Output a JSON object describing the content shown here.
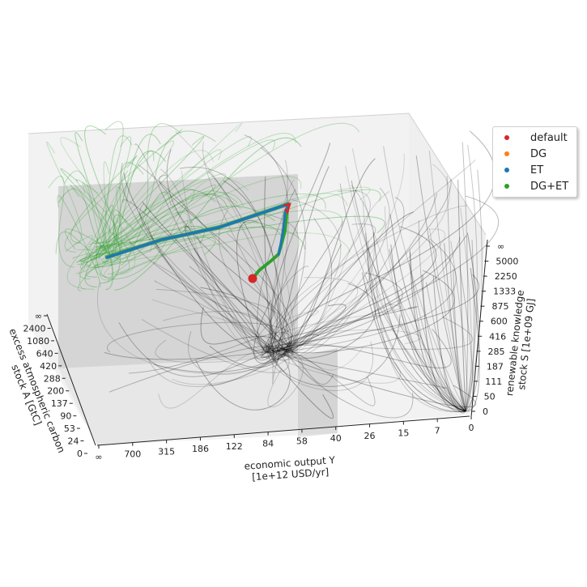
{
  "chart_data": {
    "type": "3d-phase-space",
    "title": "",
    "xlabel": "economic output Y\n[1e+12 USD/yr]",
    "ylabel": "excess atmospheric carbon\nstock A [GtC]",
    "zlabel": "renewable knowledge\nstock S [1e+09 GJ]",
    "x_ticks": [
      "∞",
      "700",
      "315",
      "186",
      "122",
      "84",
      "58",
      "40",
      "26",
      "15",
      "7",
      "0"
    ],
    "y_ticks": [
      "0",
      "24",
      "53",
      "90",
      "137",
      "200",
      "288",
      "420",
      "640",
      "1080",
      "2400",
      "∞"
    ],
    "z_ticks": [
      "0",
      "50",
      "111",
      "187",
      "285",
      "416",
      "600",
      "875",
      "1333",
      "2250",
      "5000",
      "∞"
    ],
    "legend": {
      "placement": "top-right",
      "entries": [
        {
          "label": "default",
          "color": "#d62728"
        },
        {
          "label": "DG",
          "color": "#ff7f0e"
        },
        {
          "label": "ET",
          "color": "#1f77b4"
        },
        {
          "label": "DG+ET",
          "color": "#2ca02c"
        }
      ]
    },
    "series": [
      {
        "name": "default",
        "marker": "start point"
      },
      {
        "name": "ET",
        "marker": "trajectory"
      },
      {
        "name": "DG+ET",
        "marker": "trajectory"
      }
    ],
    "streamline_colors": {
      "green": "#2ca02c",
      "black": "#000000"
    }
  }
}
